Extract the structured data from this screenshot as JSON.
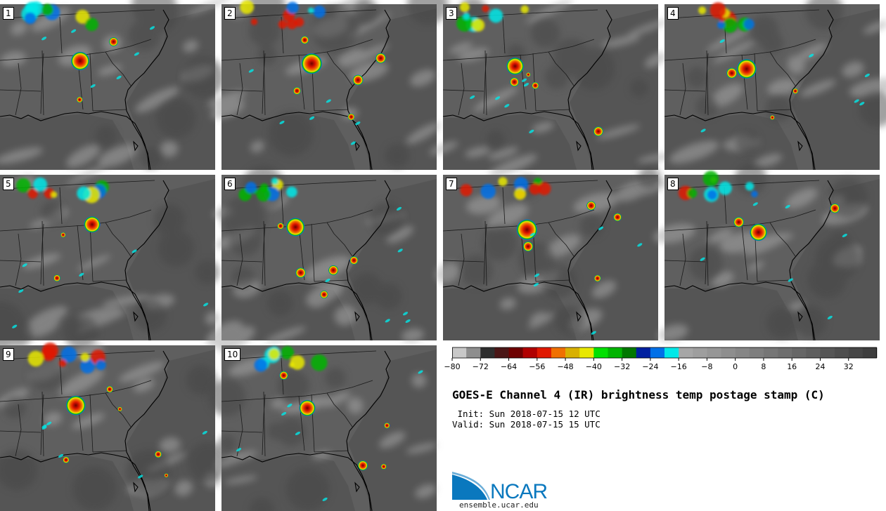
{
  "panels": [
    {
      "id": "1"
    },
    {
      "id": "2"
    },
    {
      "id": "3"
    },
    {
      "id": "4"
    },
    {
      "id": "5"
    },
    {
      "id": "6"
    },
    {
      "id": "7"
    },
    {
      "id": "8"
    },
    {
      "id": "9"
    },
    {
      "id": "10"
    }
  ],
  "colorbar": {
    "colors": [
      "#c8c8c8",
      "#8e8e8e",
      "#2e2e2e",
      "#4a1616",
      "#6e0000",
      "#b00000",
      "#e01800",
      "#f07000",
      "#d8b000",
      "#e8e800",
      "#00e000",
      "#00b400",
      "#007800",
      "#0020a0",
      "#0070e8",
      "#00e8e8",
      "#a6a6a6",
      "#9e9e9e",
      "#969696",
      "#8e8e8e",
      "#868686",
      "#7e7e7e",
      "#767676",
      "#6e6e6e",
      "#666666",
      "#5e5e5e",
      "#565656",
      "#4e4e4e",
      "#464646",
      "#3e3e3e"
    ],
    "ticks": [
      "-80",
      "-72",
      "-64",
      "-56",
      "-48",
      "-40",
      "-32",
      "-24",
      "-16",
      "-8",
      "0",
      "8",
      "16",
      "24",
      "32"
    ]
  },
  "title": "GOES-E Channel 4 (IR) brightness temp postage stamp (C)",
  "init_line": " Init: Sun 2018-07-15 12 UTC",
  "valid_line": "Valid: Sun 2018-07-15 15 UTC",
  "logo": {
    "text": "NCAR",
    "url": "ensemble.ucar.edu",
    "brand_color": "#0a78be"
  }
}
